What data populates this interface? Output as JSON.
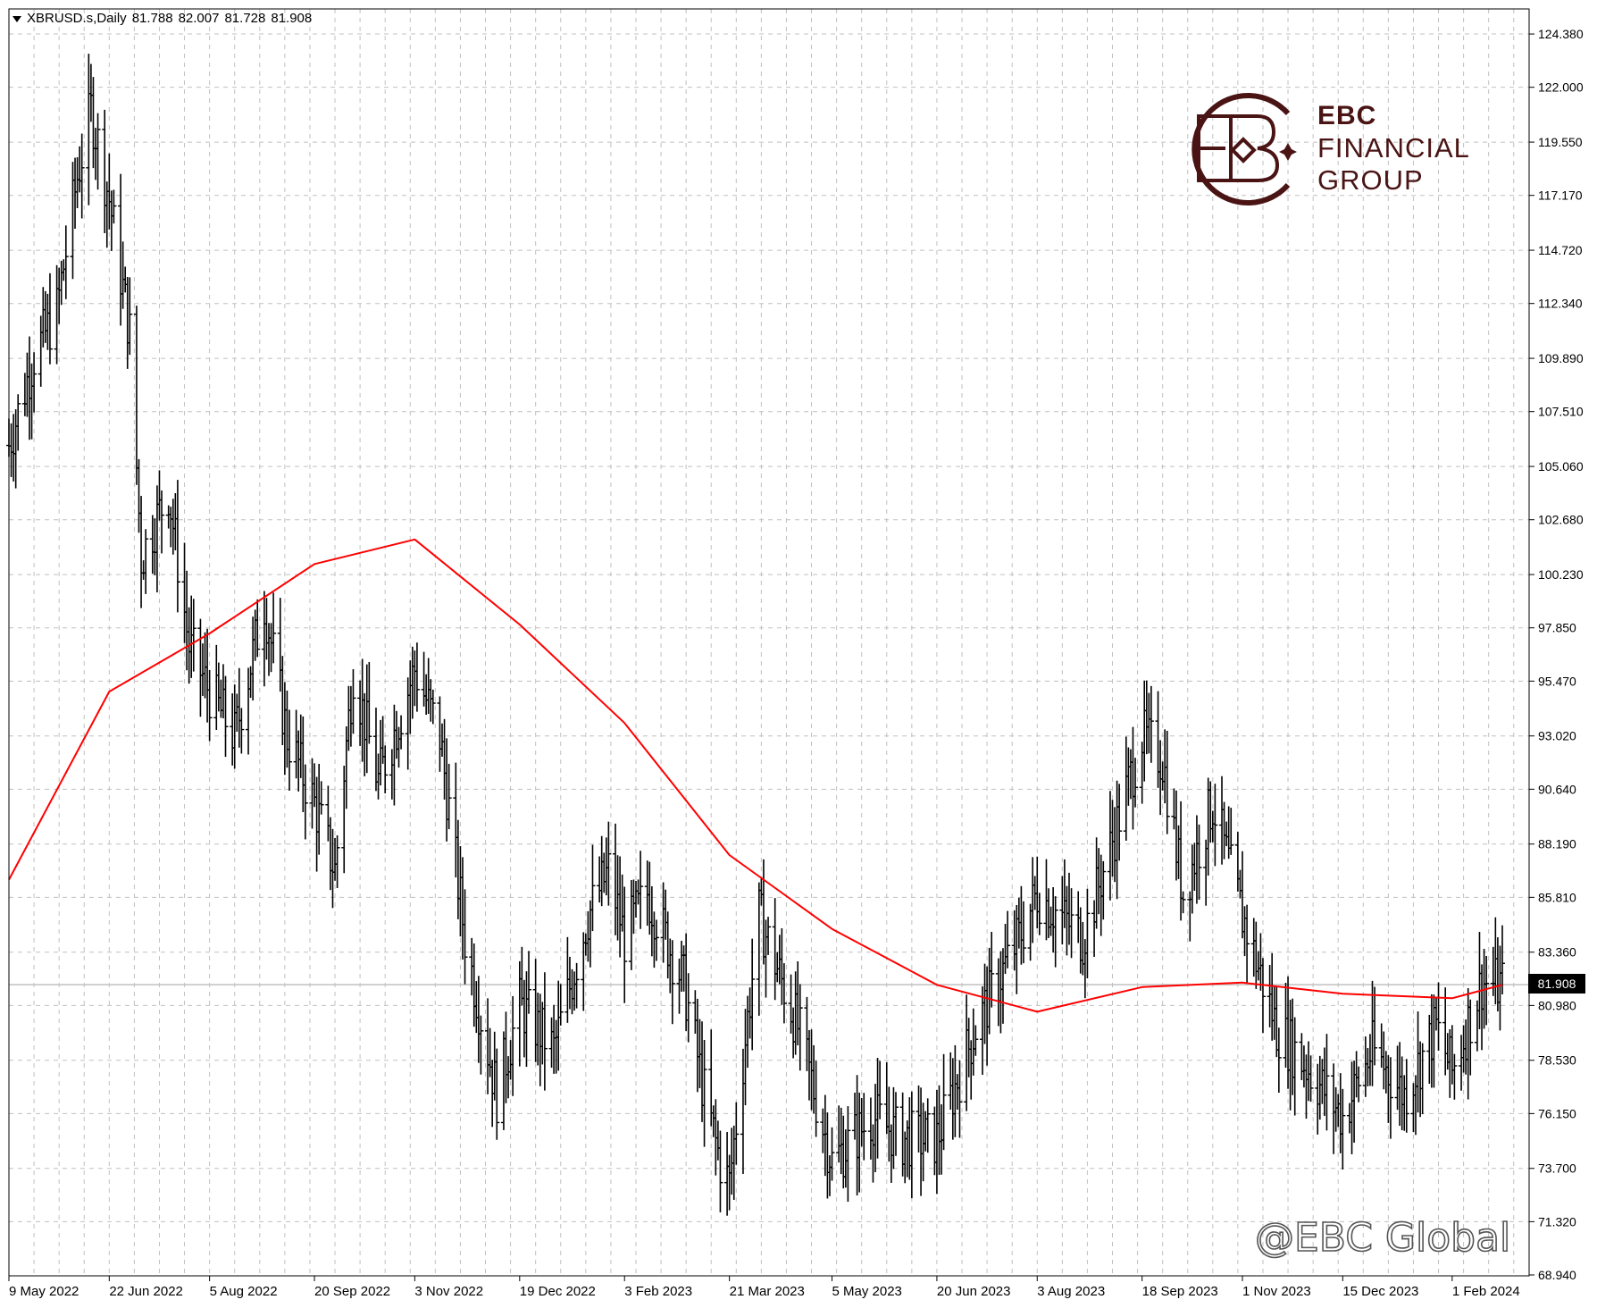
{
  "header": {
    "symbol": "XBRUSD.s,Daily",
    "open": "81.788",
    "high": "82.007",
    "low": "81.728",
    "close": "81.908"
  },
  "logo": {
    "line1": "EBC",
    "line2": "FINANCIAL",
    "line3": "GROUP"
  },
  "watermark": "@EBC Global",
  "last_price_label": "81.908",
  "colors": {
    "bars": "#000000",
    "moving_average": "#ff0000",
    "grid": "#c0c0c0",
    "last_price_line": "#c0c0c0",
    "logo": "#4a1414"
  },
  "chart_data": {
    "type": "ohlc",
    "instrument": "XBRUSD.s",
    "timeframe": "Daily",
    "grid": true,
    "ylim": [
      68.9,
      125.5
    ],
    "y_ticks": [
      "124.380",
      "122.000",
      "119.550",
      "117.170",
      "114.720",
      "112.340",
      "109.890",
      "107.510",
      "105.060",
      "102.680",
      "100.230",
      "97.850",
      "95.470",
      "93.020",
      "90.640",
      "88.190",
      "85.810",
      "83.360",
      "80.980",
      "78.530",
      "76.150",
      "73.700",
      "71.320",
      "68.940"
    ],
    "x_ticks": [
      "9 May 2022",
      "22 Jun 2022",
      "5 Aug 2022",
      "20 Sep 2022",
      "3 Nov 2022",
      "19 Dec 2022",
      "3 Feb 2023",
      "21 Mar 2023",
      "5 May 2023",
      "20 Jun 2023",
      "3 Aug 2023",
      "18 Sep 2023",
      "1 Nov 2023",
      "15 Dec 2023",
      "1 Feb 2024"
    ],
    "last_price": 81.908,
    "price_path": {
      "x": [
        "9 May 2022",
        "20 May 2022",
        "30 May 2022",
        "8 Jun 2022",
        "14 Jun 2022",
        "22 Jun 2022",
        "1 Jul 2022",
        "6 Jul 2022",
        "18 Jul 2022",
        "27 Jul 2022",
        "5 Aug 2022",
        "16 Aug 2022",
        "29 Aug 2022",
        "8 Sep 2022",
        "20 Sep 2022",
        "29 Sep 2022",
        "7 Oct 2022",
        "18 Oct 2022",
        "3 Nov 2022",
        "14 Nov 2022",
        "25 Nov 2022",
        "9 Dec 2022",
        "19 Dec 2022",
        "3 Jan 2023",
        "18 Jan 2023",
        "27 Jan 2023",
        "3 Feb 2023",
        "13 Feb 2023",
        "1 Mar 2023",
        "10 Mar 2023",
        "17 Mar 2023",
        "21 Mar 2023",
        "3 Apr 2023",
        "20 Apr 2023",
        "5 May 2023",
        "23 May 2023",
        "5 Jun 2023",
        "20 Jun 2023",
        "7 Jul 2023",
        "26 Jul 2023",
        "3 Aug 2023",
        "23 Aug 2023",
        "4 Sep 2023",
        "18 Sep 2023",
        "27 Sep 2023",
        "6 Oct 2023",
        "19 Oct 2023",
        "1 Nov 2023",
        "16 Nov 2023",
        "1 Dec 2023",
        "15 Dec 2023",
        "28 Dec 2023",
        "11 Jan 2024",
        "25 Jan 2024",
        "1 Feb 2024",
        "14 Feb 2024",
        "23 Feb 2024"
      ],
      "y": [
        106,
        110,
        112,
        118,
        121,
        117,
        111,
        101,
        104,
        97,
        95,
        93,
        99,
        93,
        90,
        87,
        96,
        91,
        96,
        93,
        84,
        77,
        81,
        79,
        85,
        87,
        84,
        86,
        82,
        77,
        74,
        73,
        85,
        80,
        74,
        76,
        75,
        75,
        80,
        84,
        86,
        84,
        88,
        93,
        92,
        86,
        90,
        85,
        80,
        78,
        76,
        79,
        77,
        80,
        78,
        82,
        81.9
      ]
    },
    "series": [
      {
        "name": "",
        "type": "moving_average",
        "x": [
          "9 May 2022",
          "22 Jun 2022",
          "5 Aug 2022",
          "20 Sep 2022",
          "3 Nov 2022",
          "19 Dec 2022",
          "3 Feb 2023",
          "21 Mar 2023",
          "5 May 2023",
          "20 Jun 2023",
          "3 Aug 2023",
          "18 Sep 2023",
          "1 Nov 2023",
          "15 Dec 2023",
          "1 Feb 2024",
          "23 Feb 2024"
        ],
        "values": [
          86.6,
          95.0,
          97.6,
          100.7,
          101.8,
          98.0,
          93.6,
          87.7,
          84.4,
          81.9,
          80.7,
          81.8,
          82.0,
          81.5,
          81.3,
          81.9
        ]
      }
    ]
  }
}
